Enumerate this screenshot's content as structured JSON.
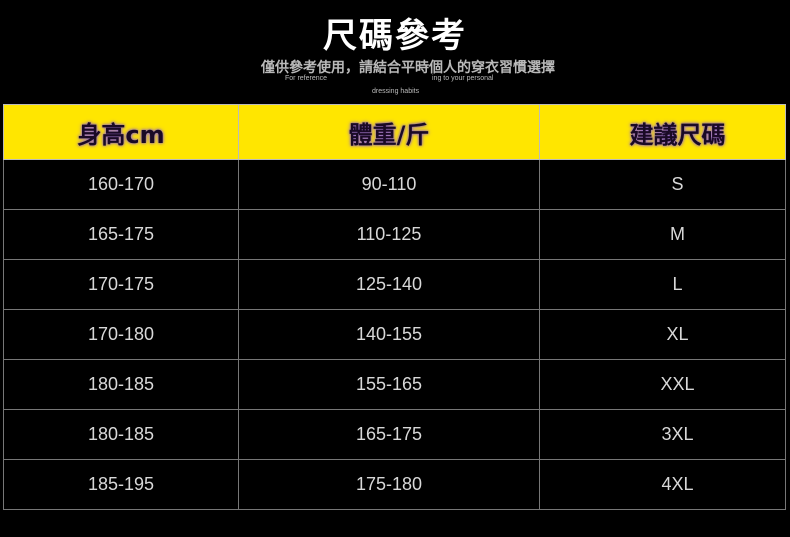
{
  "title": "尺碼參考",
  "subtitle": "僅供參考使用，請結合平時個人的穿衣習慣選擇",
  "english_note": [
    "For reference",
    "ing to your personal",
    "dressing habits"
  ],
  "colors": {
    "header_bg": "#ffe600",
    "background": "#000000",
    "cell_text": "#d8d8d8"
  },
  "table": {
    "headers": [
      "身高cm",
      "體重/斤",
      "建議尺碼"
    ],
    "rows": [
      [
        "160-170",
        "90-110",
        "S"
      ],
      [
        "165-175",
        "110-125",
        "M"
      ],
      [
        "170-175",
        "125-140",
        "L"
      ],
      [
        "170-180",
        "140-155",
        "XL"
      ],
      [
        "180-185",
        "155-165",
        "XXL"
      ],
      [
        "180-185",
        "165-175",
        "3XL"
      ],
      [
        "185-195",
        "175-180",
        "4XL"
      ]
    ]
  }
}
